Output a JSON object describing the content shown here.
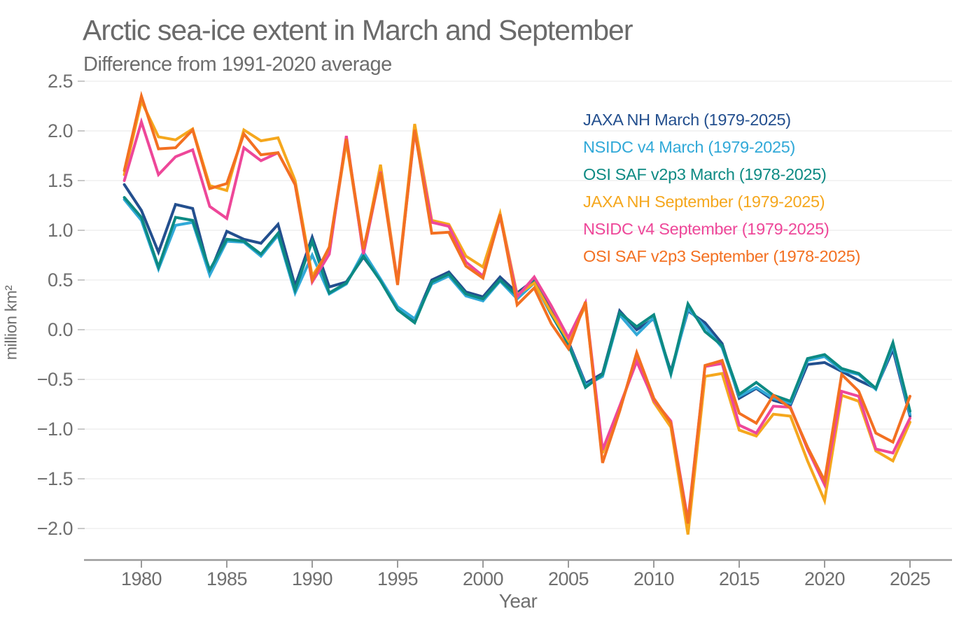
{
  "chart_data": {
    "type": "line",
    "title": "Arctic sea-ice extent in March and September",
    "subtitle": "Difference from 1991-2020 average",
    "xlabel": "Year",
    "ylabel": "million km²",
    "grid": "horizontal",
    "legend_position": "upper right",
    "xlim": [
      1976.6,
      2027.5
    ],
    "ylim": [
      -2.32,
      2.5
    ],
    "x_ticks": [
      1980,
      1985,
      1990,
      1995,
      2000,
      2005,
      2010,
      2015,
      2020,
      2025
    ],
    "y_ticks": [
      2.5,
      2.0,
      1.5,
      1.0,
      0.5,
      0.0,
      -0.5,
      -1.0,
      -1.5,
      -2.0
    ],
    "x": [
      1979,
      1980,
      1981,
      1982,
      1983,
      1984,
      1985,
      1986,
      1987,
      1988,
      1989,
      1990,
      1991,
      1992,
      1993,
      1994,
      1995,
      1996,
      1997,
      1998,
      1999,
      2000,
      2001,
      2002,
      2003,
      2004,
      2005,
      2006,
      2007,
      2008,
      2009,
      2010,
      2011,
      2012,
      2013,
      2014,
      2015,
      2016,
      2017,
      2018,
      2019,
      2020,
      2021,
      2022,
      2023,
      2024,
      2025
    ],
    "series": [
      {
        "id": "jaxa-march",
        "name": "JAXA NH March (1979-2025)",
        "color": "#234f8e",
        "values": [
          1.46,
          1.2,
          0.78,
          1.26,
          1.22,
          0.57,
          0.99,
          0.91,
          0.87,
          1.06,
          0.44,
          0.93,
          0.43,
          0.48,
          0.73,
          0.5,
          0.22,
          0.1,
          0.5,
          0.58,
          0.38,
          0.33,
          0.53,
          0.37,
          0.5,
          0.18,
          -0.12,
          -0.54,
          -0.44,
          0.19,
          0.0,
          0.11,
          -0.42,
          0.19,
          0.07,
          -0.14,
          -0.69,
          -0.59,
          -0.71,
          -0.76,
          -0.35,
          -0.33,
          -0.42,
          -0.51,
          -0.59,
          -0.2,
          -0.87
        ]
      },
      {
        "id": "nsidc-march",
        "name": "NSIDC v4 March (1979-2025)",
        "color": "#31a9d8",
        "values": [
          1.31,
          1.1,
          0.61,
          1.05,
          1.08,
          0.55,
          0.89,
          0.88,
          0.74,
          0.95,
          0.37,
          0.75,
          0.36,
          0.46,
          0.78,
          0.51,
          0.23,
          0.11,
          0.46,
          0.54,
          0.34,
          0.29,
          0.49,
          0.31,
          0.47,
          0.15,
          -0.14,
          -0.56,
          -0.47,
          0.15,
          -0.05,
          0.12,
          -0.45,
          0.21,
          0.03,
          -0.18,
          -0.67,
          -0.58,
          -0.69,
          -0.74,
          -0.31,
          -0.27,
          -0.41,
          -0.45,
          -0.6,
          -0.16,
          -0.85
        ]
      },
      {
        "id": "osisaf-march",
        "name": "OSI SAF v2p3 March (1978-2025)",
        "color": "#0d8a83",
        "values": [
          1.33,
          1.13,
          0.63,
          1.13,
          1.1,
          0.6,
          0.91,
          0.89,
          0.76,
          0.97,
          0.4,
          0.89,
          0.37,
          0.47,
          0.74,
          0.49,
          0.2,
          0.07,
          0.48,
          0.56,
          0.36,
          0.31,
          0.5,
          0.34,
          0.49,
          0.16,
          -0.15,
          -0.58,
          -0.45,
          0.17,
          0.03,
          0.15,
          -0.44,
          0.26,
          -0.02,
          -0.16,
          -0.65,
          -0.53,
          -0.66,
          -0.72,
          -0.29,
          -0.25,
          -0.39,
          -0.44,
          -0.59,
          -0.13,
          -0.82
        ]
      },
      {
        "id": "jaxa-september",
        "name": "JAXA NH September (1979-2025)",
        "color": "#f5a71d",
        "values": [
          1.56,
          2.3,
          1.94,
          1.91,
          2.02,
          1.45,
          1.4,
          2.01,
          1.9,
          1.93,
          1.5,
          0.54,
          0.8,
          1.89,
          0.78,
          1.66,
          0.48,
          2.07,
          1.1,
          1.06,
          0.74,
          0.63,
          1.17,
          0.35,
          0.47,
          0.17,
          -0.11,
          0.24,
          -1.24,
          -0.8,
          -0.28,
          -0.73,
          -0.98,
          -2.06,
          -0.47,
          -0.44,
          -1.01,
          -1.07,
          -0.85,
          -0.87,
          -1.32,
          -1.72,
          -0.66,
          -0.72,
          -1.22,
          -1.32,
          -0.93
        ]
      },
      {
        "id": "nsidc-september",
        "name": "NSIDC v4 September (1979-2025)",
        "color": "#ee4799",
        "values": [
          1.5,
          2.09,
          1.56,
          1.74,
          1.81,
          1.24,
          1.12,
          1.83,
          1.7,
          1.78,
          1.46,
          0.48,
          0.76,
          1.95,
          0.76,
          1.59,
          0.47,
          1.99,
          1.08,
          1.04,
          0.68,
          0.54,
          1.14,
          0.33,
          0.53,
          0.24,
          -0.08,
          0.27,
          -1.21,
          -0.77,
          -0.32,
          -0.71,
          -0.92,
          -1.92,
          -0.37,
          -0.34,
          -0.96,
          -1.04,
          -0.77,
          -0.78,
          -1.2,
          -1.56,
          -0.62,
          -0.67,
          -1.2,
          -1.24,
          -0.89
        ]
      },
      {
        "id": "osisaf-september",
        "name": "OSI SAF v2p3 September (1978-2025)",
        "color": "#f37021",
        "values": [
          1.6,
          2.35,
          1.82,
          1.83,
          2.01,
          1.42,
          1.47,
          1.97,
          1.76,
          1.78,
          1.46,
          0.5,
          0.83,
          1.92,
          0.81,
          1.58,
          0.45,
          2.01,
          0.97,
          0.98,
          0.64,
          0.52,
          1.16,
          0.25,
          0.42,
          0.06,
          -0.19,
          0.28,
          -1.34,
          -0.82,
          -0.23,
          -0.69,
          -0.94,
          -1.95,
          -0.36,
          -0.31,
          -0.84,
          -0.94,
          -0.66,
          -0.79,
          -1.18,
          -1.52,
          -0.45,
          -0.62,
          -1.04,
          -1.13,
          -0.67
        ]
      }
    ],
    "style": {
      "grid_color": "#e7e7e7",
      "axis_color": "#9b9b9b",
      "tick_mark_color": "#c9c9c9",
      "text_color": "#6f6f6f",
      "title_color": "#6a6a6a",
      "background": "#ffffff",
      "line_width": 4
    }
  }
}
